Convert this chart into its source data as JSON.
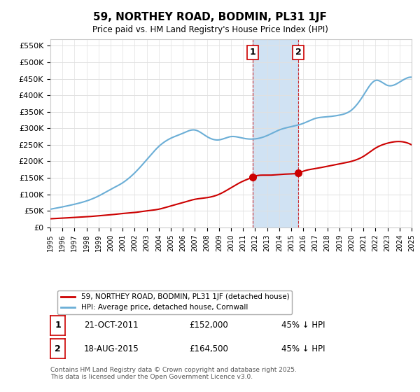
{
  "title": "59, NORTHEY ROAD, BODMIN, PL31 1JF",
  "subtitle": "Price paid vs. HM Land Registry's House Price Index (HPI)",
  "ylabel": "",
  "ylim": [
    0,
    570000
  ],
  "yticks": [
    0,
    50000,
    100000,
    150000,
    200000,
    250000,
    300000,
    350000,
    400000,
    450000,
    500000,
    550000
  ],
  "ytick_labels": [
    "£0",
    "£50K",
    "£100K",
    "£150K",
    "£200K",
    "£250K",
    "£300K",
    "£350K",
    "£400K",
    "£450K",
    "£500K",
    "£550K"
  ],
  "hpi_color": "#6baed6",
  "price_color": "#cc0000",
  "marker_color": "#cc0000",
  "vline_color": "#cc0000",
  "vshade_color": "#bdd7ee",
  "transaction1_year": 2011.8,
  "transaction2_year": 2015.6,
  "transaction1_price": 152000,
  "transaction2_price": 164500,
  "transaction1_label": "1",
  "transaction2_label": "2",
  "legend_label_price": "59, NORTHEY ROAD, BODMIN, PL31 1JF (detached house)",
  "legend_label_hpi": "HPI: Average price, detached house, Cornwall",
  "note1_num": "1",
  "note1_date": "21-OCT-2011",
  "note1_price": "£152,000",
  "note1_hpi": "45% ↓ HPI",
  "note2_num": "2",
  "note2_date": "18-AUG-2015",
  "note2_price": "£164,500",
  "note2_hpi": "45% ↓ HPI",
  "footer": "Contains HM Land Registry data © Crown copyright and database right 2025.\nThis data is licensed under the Open Government Licence v3.0.",
  "xmin": 1995,
  "xmax": 2025
}
